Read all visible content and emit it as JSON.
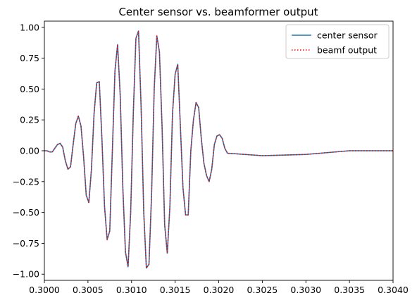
{
  "chart_data": {
    "type": "line",
    "title": "Center sensor vs. beamformer output",
    "xlabel": "",
    "ylabel": "",
    "xlim": [
      0.3,
      0.304
    ],
    "ylim": [
      -1.05,
      1.05
    ],
    "grid": false,
    "legend_position": "top-right",
    "x_ticks": [
      {
        "value": 0.3,
        "label": "0.3000"
      },
      {
        "value": 0.3005,
        "label": "0.3005"
      },
      {
        "value": 0.301,
        "label": "0.3010"
      },
      {
        "value": 0.3015,
        "label": "0.3015"
      },
      {
        "value": 0.302,
        "label": "0.3020"
      },
      {
        "value": 0.3025,
        "label": "0.3025"
      },
      {
        "value": 0.303,
        "label": "0.3030"
      },
      {
        "value": 0.3035,
        "label": "0.3035"
      },
      {
        "value": 0.304,
        "label": "0.3040"
      }
    ],
    "y_ticks": [
      {
        "value": 1.0,
        "label": "1.00"
      },
      {
        "value": 0.75,
        "label": "0.75"
      },
      {
        "value": 0.5,
        "label": "0.50"
      },
      {
        "value": 0.25,
        "label": "0.25"
      },
      {
        "value": 0.0,
        "label": "0.00"
      },
      {
        "value": -0.25,
        "label": "−0.25"
      },
      {
        "value": -0.5,
        "label": "−0.50"
      },
      {
        "value": -0.75,
        "label": "−0.75"
      },
      {
        "value": -1.0,
        "label": "−1.00"
      }
    ],
    "x": [
      0.3,
      0.30003,
      0.30006,
      0.30009,
      0.30012,
      0.30015,
      0.30018,
      0.30021,
      0.30024,
      0.30027,
      0.3003,
      0.30033,
      0.30036,
      0.30039,
      0.30042,
      0.30045,
      0.30048,
      0.30051,
      0.30054,
      0.30057,
      0.3006,
      0.30063,
      0.30066,
      0.30069,
      0.30072,
      0.30075,
      0.30078,
      0.30081,
      0.30084,
      0.30087,
      0.3009,
      0.30093,
      0.30096,
      0.30099,
      0.30102,
      0.30105,
      0.30108,
      0.30111,
      0.30114,
      0.30117,
      0.3012,
      0.30123,
      0.30126,
      0.30129,
      0.30132,
      0.30135,
      0.30138,
      0.30141,
      0.30144,
      0.30147,
      0.3015,
      0.30153,
      0.30156,
      0.30159,
      0.30162,
      0.30165,
      0.30168,
      0.30171,
      0.30174,
      0.30177,
      0.3018,
      0.30183,
      0.30186,
      0.30189,
      0.30192,
      0.30195,
      0.30198,
      0.30201,
      0.30204,
      0.30207,
      0.3021,
      0.3025,
      0.303,
      0.3035,
      0.304
    ],
    "series": [
      {
        "name": "center sensor",
        "color": "#1f77b4",
        "style": "solid",
        "y": [
          0.0,
          0.0,
          -0.01,
          -0.01,
          0.02,
          0.05,
          0.06,
          0.03,
          -0.08,
          -0.15,
          -0.13,
          0.05,
          0.22,
          0.28,
          0.2,
          -0.05,
          -0.36,
          -0.42,
          -0.15,
          0.3,
          0.55,
          0.56,
          0.1,
          -0.45,
          -0.72,
          -0.65,
          0.0,
          0.65,
          0.86,
          0.45,
          -0.3,
          -0.82,
          -0.94,
          -0.5,
          0.3,
          0.91,
          0.97,
          0.35,
          -0.5,
          -0.95,
          -0.92,
          -0.35,
          0.5,
          0.93,
          0.8,
          0.2,
          -0.6,
          -0.83,
          -0.45,
          0.3,
          0.62,
          0.7,
          0.2,
          -0.3,
          -0.52,
          -0.52,
          0.0,
          0.25,
          0.39,
          0.35,
          0.1,
          -0.1,
          -0.2,
          -0.25,
          -0.15,
          0.05,
          0.12,
          0.13,
          0.1,
          0.02,
          -0.02,
          -0.04,
          -0.03,
          0.0,
          0.0
        ]
      },
      {
        "name": "beamf output",
        "color": "#ff0000",
        "style": "dotted",
        "y": [
          0.0,
          0.0,
          -0.01,
          -0.01,
          0.02,
          0.05,
          0.06,
          0.03,
          -0.08,
          -0.15,
          -0.13,
          0.05,
          0.22,
          0.28,
          0.2,
          -0.05,
          -0.36,
          -0.42,
          -0.15,
          0.3,
          0.55,
          0.56,
          0.1,
          -0.45,
          -0.72,
          -0.65,
          0.0,
          0.65,
          0.86,
          0.45,
          -0.3,
          -0.82,
          -0.94,
          -0.5,
          0.3,
          0.91,
          0.97,
          0.35,
          -0.5,
          -0.95,
          -0.92,
          -0.35,
          0.5,
          0.93,
          0.8,
          0.2,
          -0.6,
          -0.83,
          -0.45,
          0.3,
          0.62,
          0.7,
          0.2,
          -0.3,
          -0.52,
          -0.52,
          0.0,
          0.25,
          0.39,
          0.35,
          0.1,
          -0.1,
          -0.2,
          -0.25,
          -0.15,
          0.05,
          0.12,
          0.13,
          0.1,
          0.02,
          -0.02,
          -0.04,
          -0.03,
          0.0,
          0.0
        ]
      }
    ]
  }
}
